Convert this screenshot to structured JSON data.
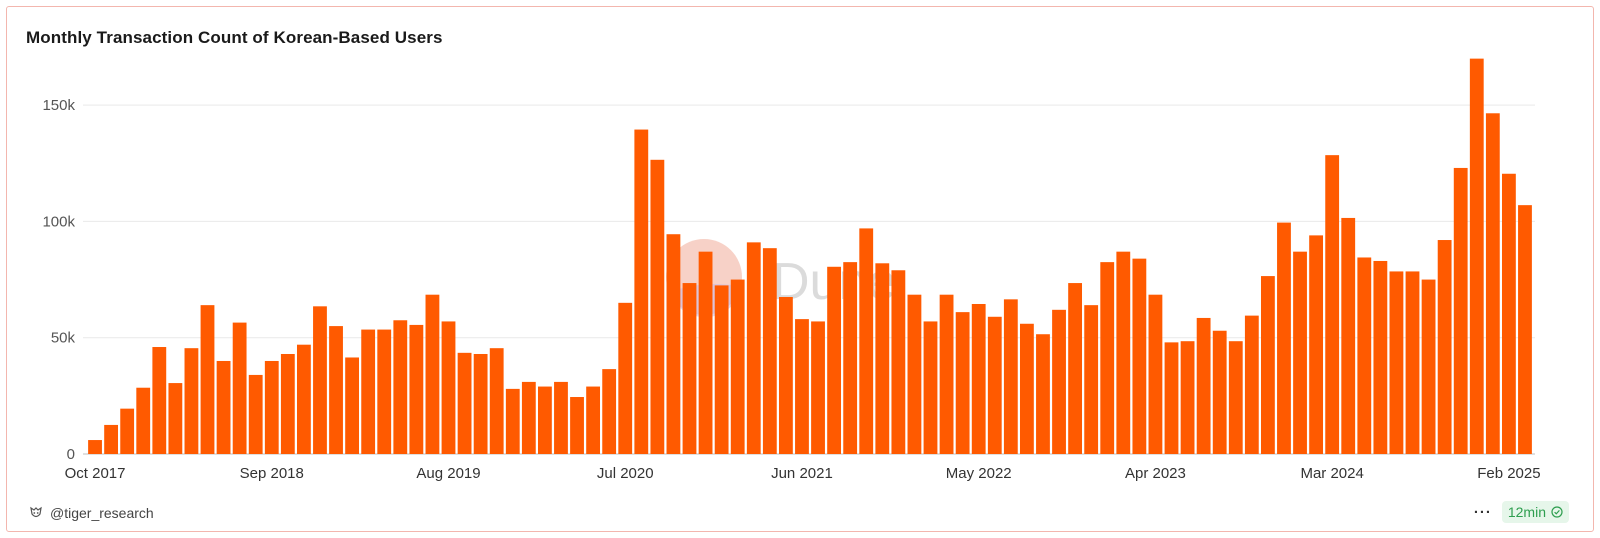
{
  "title": "Monthly Transaction Count of Korean-Based Users",
  "watermark": "Dune",
  "footer": {
    "author": "@tiger_research",
    "more_label": "···",
    "refresh_badge": "12min"
  },
  "colors": {
    "bar": "#ff5a00",
    "grid": "#e9e9e9",
    "axis_text": "#555555",
    "badge_bg": "#e6f6ea",
    "badge_text": "#2e9e4f",
    "border": "#f3b6ae"
  },
  "chart_data": {
    "type": "bar",
    "title": "Monthly Transaction Count of Korean-Based Users",
    "xlabel": "",
    "ylabel": "",
    "ylim": [
      0,
      175000
    ],
    "yticks": [
      0,
      50000,
      100000,
      150000
    ],
    "ytick_labels": [
      "0",
      "50k",
      "100k",
      "150k"
    ],
    "grid": true,
    "x_tick_labels": [
      {
        "index": 0,
        "label": "Oct 2017"
      },
      {
        "index": 11,
        "label": "Sep 2018"
      },
      {
        "index": 22,
        "label": "Aug 2019"
      },
      {
        "index": 33,
        "label": "Jul 2020"
      },
      {
        "index": 44,
        "label": "Jun 2021"
      },
      {
        "index": 55,
        "label": "May 2022"
      },
      {
        "index": 66,
        "label": "Apr 2023"
      },
      {
        "index": 77,
        "label": "Mar 2024"
      },
      {
        "index": 88,
        "label": "Feb 2025"
      }
    ],
    "categories": [
      "Oct 2017",
      "Nov 2017",
      "Dec 2017",
      "Jan 2018",
      "Feb 2018",
      "Mar 2018",
      "Apr 2018",
      "May 2018",
      "Jun 2018",
      "Jul 2018",
      "Aug 2018",
      "Sep 2018",
      "Oct 2018",
      "Nov 2018",
      "Dec 2018",
      "Jan 2019",
      "Feb 2019",
      "Mar 2019",
      "Apr 2019",
      "May 2019",
      "Jun 2019",
      "Jul 2019",
      "Aug 2019",
      "Sep 2019",
      "Oct 2019",
      "Nov 2019",
      "Dec 2019",
      "Jan 2020",
      "Feb 2020",
      "Mar 2020",
      "Apr 2020",
      "May 2020",
      "Jun 2020",
      "Jul 2020",
      "Aug 2020",
      "Sep 2020",
      "Oct 2020",
      "Nov 2020",
      "Dec 2020",
      "Jan 2021",
      "Feb 2021",
      "Mar 2021",
      "Apr 2021",
      "May 2021",
      "Jun 2021",
      "Jul 2021",
      "Aug 2021",
      "Sep 2021",
      "Oct 2021",
      "Nov 2021",
      "Dec 2021",
      "Jan 2022",
      "Feb 2022",
      "Mar 2022",
      "Apr 2022",
      "May 2022",
      "Jun 2022",
      "Jul 2022",
      "Aug 2022",
      "Sep 2022",
      "Oct 2022",
      "Nov 2022",
      "Dec 2022",
      "Jan 2023",
      "Feb 2023",
      "Mar 2023",
      "Apr 2023",
      "May 2023",
      "Jun 2023",
      "Jul 2023",
      "Aug 2023",
      "Sep 2023",
      "Oct 2023",
      "Nov 2023",
      "Dec 2023",
      "Jan 2024",
      "Feb 2024",
      "Mar 2024",
      "Apr 2024",
      "May 2024",
      "Jun 2024",
      "Jul 2024",
      "Aug 2024",
      "Sep 2024",
      "Oct 2024",
      "Nov 2024",
      "Dec 2024",
      "Jan 2025",
      "Feb 2025",
      "Mar 2025"
    ],
    "values": [
      6000,
      12500,
      19500,
      28500,
      46000,
      30500,
      45500,
      64000,
      40000,
      56500,
      34000,
      40000,
      43000,
      47000,
      63500,
      55000,
      41500,
      53500,
      53500,
      57500,
      55500,
      68500,
      57000,
      43500,
      43000,
      45500,
      28000,
      31000,
      29000,
      31000,
      24500,
      29000,
      36500,
      65000,
      139500,
      126500,
      94500,
      73500,
      87000,
      72500,
      75000,
      91000,
      88500,
      67500,
      58000,
      57000,
      80500,
      82500,
      97000,
      82000,
      79000,
      68500,
      57000,
      68500,
      61000,
      64500,
      59000,
      66500,
      56000,
      51500,
      62000,
      73500,
      64000,
      82500,
      87000,
      84000,
      68500,
      48000,
      48500,
      58500,
      53000,
      48500,
      59500,
      76500,
      99500,
      87000,
      94000,
      128500,
      101500,
      84500,
      83000,
      78500,
      78500,
      75000,
      92000,
      123000,
      170000,
      146500,
      120500,
      107000
    ]
  }
}
